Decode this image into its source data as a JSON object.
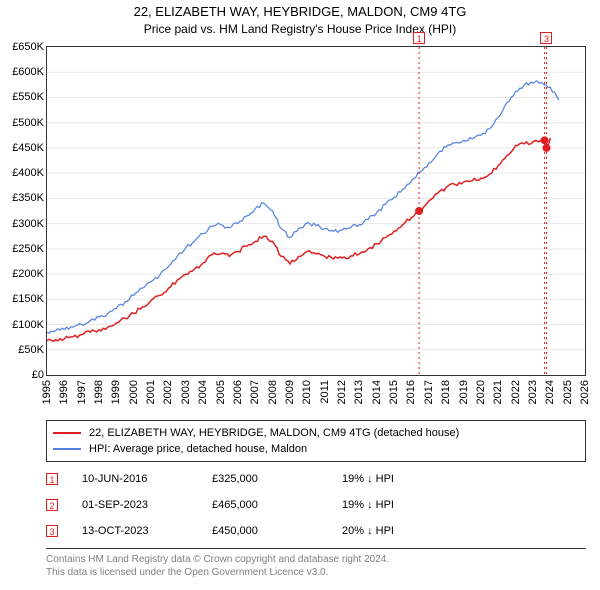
{
  "title": "22, ELIZABETH WAY, HEYBRIDGE, MALDON, CM9 4TG",
  "subtitle": "Price paid vs. HM Land Registry's House Price Index (HPI)",
  "chart": {
    "type": "line",
    "background_color": "#ffffff",
    "border_color": "#333333",
    "grid_color": "#e8e8e8",
    "title_fontsize": 13,
    "subtitle_fontsize": 12,
    "tick_fontsize": 11,
    "xlim": [
      1995,
      2026
    ],
    "ylim": [
      0,
      650
    ],
    "ytick_step": 50,
    "ytick_prefix": "£",
    "ytick_suffix": "K",
    "xticks": [
      1995,
      1996,
      1997,
      1998,
      1999,
      2000,
      2001,
      2002,
      2003,
      2004,
      2005,
      2006,
      2007,
      2008,
      2009,
      2010,
      2011,
      2012,
      2013,
      2014,
      2015,
      2016,
      2017,
      2018,
      2019,
      2020,
      2021,
      2022,
      2023,
      2024,
      2025,
      2026
    ],
    "series": [
      {
        "name": "22, ELIZABETH WAY, HEYBRIDGE, MALDON, CM9 4TG (detached house)",
        "color": "#e02020",
        "line_width": 1.5,
        "x": [
          1995,
          1995.5,
          1996,
          1996.5,
          1997,
          1997.5,
          1998,
          1998.5,
          1999,
          1999.5,
          2000,
          2000.5,
          2001,
          2001.5,
          2002,
          2002.5,
          2003,
          2003.5,
          2004,
          2004.5,
          2005,
          2005.5,
          2006,
          2006.5,
          2007,
          2007.5,
          2008,
          2008.5,
          2009,
          2009.5,
          2010,
          2010.5,
          2011,
          2011.5,
          2012,
          2012.5,
          2013,
          2013.5,
          2014,
          2014.5,
          2015,
          2015.5,
          2016,
          2016.44,
          2016.5,
          2017,
          2017.5,
          2018,
          2018.5,
          2019,
          2019.5,
          2020,
          2020.5,
          2021,
          2021.5,
          2022,
          2022.5,
          2023,
          2023.67,
          2023.78,
          2024
        ],
        "y": [
          68,
          70,
          72,
          76,
          80,
          85,
          90,
          95,
          103,
          112,
          122,
          135,
          148,
          158,
          172,
          188,
          200,
          210,
          222,
          238,
          240,
          235,
          245,
          255,
          265,
          275,
          265,
          235,
          220,
          235,
          245,
          240,
          235,
          230,
          232,
          236,
          240,
          250,
          260,
          272,
          285,
          298,
          312,
          325,
          325,
          345,
          360,
          372,
          378,
          382,
          385,
          390,
          398,
          415,
          435,
          455,
          458,
          462,
          465,
          450,
          470
        ]
      },
      {
        "name": "HPI: Average price, detached house, Maldon",
        "color": "#5080e0",
        "line_width": 1.2,
        "x": [
          1995,
          1995.5,
          1996,
          1996.5,
          1997,
          1997.5,
          1998,
          1998.5,
          1999,
          1999.5,
          2000,
          2000.5,
          2001,
          2001.5,
          2002,
          2002.5,
          2003,
          2003.5,
          2004,
          2004.5,
          2005,
          2005.5,
          2006,
          2006.5,
          2007,
          2007.5,
          2008,
          2008.5,
          2009,
          2009.5,
          2010,
          2010.5,
          2011,
          2011.5,
          2012,
          2012.5,
          2013,
          2013.5,
          2014,
          2014.5,
          2015,
          2015.5,
          2016,
          2016.5,
          2017,
          2017.5,
          2018,
          2018.5,
          2019,
          2019.5,
          2020,
          2020.5,
          2021,
          2021.5,
          2022,
          2022.5,
          2023,
          2023.5,
          2024,
          2024.5
        ],
        "y": [
          85,
          88,
          90,
          95,
          100,
          108,
          115,
          122,
          132,
          145,
          158,
          172,
          185,
          198,
          215,
          235,
          252,
          265,
          280,
          295,
          298,
          292,
          300,
          315,
          330,
          340,
          325,
          290,
          272,
          290,
          302,
          296,
          290,
          285,
          287,
          292,
          298,
          308,
          322,
          338,
          352,
          368,
          385,
          402,
          420,
          438,
          452,
          460,
          465,
          468,
          475,
          488,
          510,
          540,
          562,
          575,
          578,
          580,
          570,
          545
        ]
      }
    ],
    "sale_markers": [
      {
        "n": "1",
        "x": 2016.44,
        "y": 325,
        "label_top": true
      },
      {
        "n": "3",
        "x": 2023.78,
        "y": 450,
        "label_top": true
      },
      {
        "n": "2",
        "x": 2023.67,
        "y": 465,
        "label_top": false
      }
    ],
    "marker_color": "#e02020",
    "marker_line_color": "#e02020",
    "marker_line_dash": "2,3",
    "point_radius": 3
  },
  "legend": {
    "border_color": "#333333",
    "fontsize": 11,
    "items": [
      {
        "color": "#e02020",
        "label": "22, ELIZABETH WAY, HEYBRIDGE, MALDON, CM9 4TG (detached house)"
      },
      {
        "color": "#5080e0",
        "label": "HPI: Average price, detached house, Maldon"
      }
    ]
  },
  "sales": {
    "fontsize": 11,
    "marker_border_color": "#e02020",
    "rows": [
      {
        "n": "1",
        "date": "10-JUN-2016",
        "price": "£325,000",
        "delta": "19% ↓ HPI"
      },
      {
        "n": "2",
        "date": "01-SEP-2023",
        "price": "£465,000",
        "delta": "19% ↓ HPI"
      },
      {
        "n": "3",
        "date": "13-OCT-2023",
        "price": "£450,000",
        "delta": "20% ↓ HPI"
      }
    ]
  },
  "footer": {
    "color": "#808080",
    "fontsize": 10,
    "line1": "Contains HM Land Registry data © Crown copyright and database right 2024.",
    "line2": "This data is licensed under the Open Government Licence v3.0."
  }
}
